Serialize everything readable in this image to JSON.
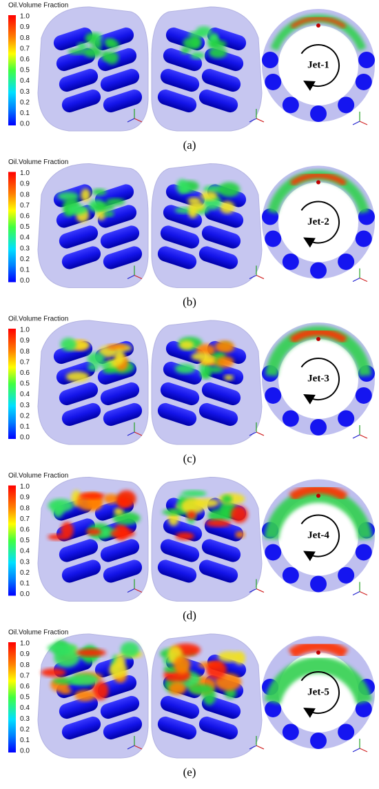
{
  "panels": [
    {
      "colorbar": {
        "title": "Oil.Volume Fraction",
        "ticks": [
          "1.0",
          "0.9",
          "0.8",
          "0.7",
          "0.6",
          "0.5",
          "0.4",
          "0.3",
          "0.2",
          "0.1",
          "0.0"
        ]
      },
      "jet_label": "Jet-1",
      "caption": "(a)"
    },
    {
      "colorbar": {
        "title": "Oil.Volume Fraction",
        "ticks": [
          "1.0",
          "0.9",
          "0.8",
          "0.7",
          "0.6",
          "0.5",
          "0.4",
          "0.3",
          "0.2",
          "0.1",
          "0.0"
        ]
      },
      "jet_label": "Jet-2",
      "caption": "(b)"
    },
    {
      "colorbar": {
        "title": "Oil.Volume Fraction",
        "ticks": [
          "1.0",
          "0.9",
          "0.8",
          "0.7",
          "0.6",
          "0.5",
          "0.4",
          "0.3",
          "0.2",
          "0.1",
          "0.0"
        ]
      },
      "jet_label": "Jet-3",
      "caption": "(c)"
    },
    {
      "colorbar": {
        "title": "Oil.Volume Fraction",
        "ticks": [
          "1.0",
          "0.9",
          "0.8",
          "0.7",
          "0.6",
          "0.5",
          "0.4",
          "0.3",
          "0.2",
          "0.1",
          "0.0"
        ]
      },
      "jet_label": "Jet-4",
      "caption": "(d)"
    },
    {
      "colorbar": {
        "title": "Oil.Volume Fraction",
        "ticks": [
          "1.0",
          "0.9",
          "0.8",
          "0.7",
          "0.6",
          "0.5",
          "0.4",
          "0.3",
          "0.2",
          "0.1",
          "0.0"
        ]
      },
      "jet_label": "Jet-5",
      "caption": "(e)"
    }
  ]
}
